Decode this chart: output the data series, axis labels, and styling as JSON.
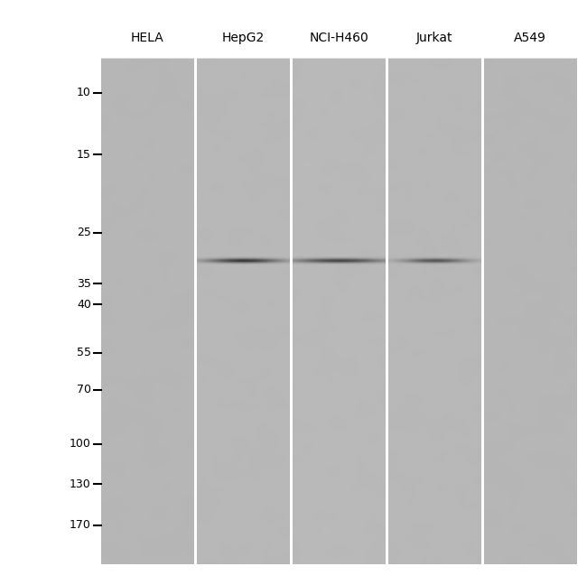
{
  "background_color": "#ffffff",
  "gel_bg_color": "#b8b8b8",
  "lane_labels": [
    "HELA",
    "HepG2",
    "NCI-H460",
    "Jurkat",
    "A549"
  ],
  "mw_markers": [
    170,
    130,
    100,
    70,
    55,
    40,
    35,
    25,
    15,
    10
  ],
  "band_positions": {
    "HepG2": 30,
    "NCI-H460": 30,
    "Jurkat": 30
  },
  "fig_width": 6.5,
  "fig_height": 6.48,
  "dpi": 100
}
